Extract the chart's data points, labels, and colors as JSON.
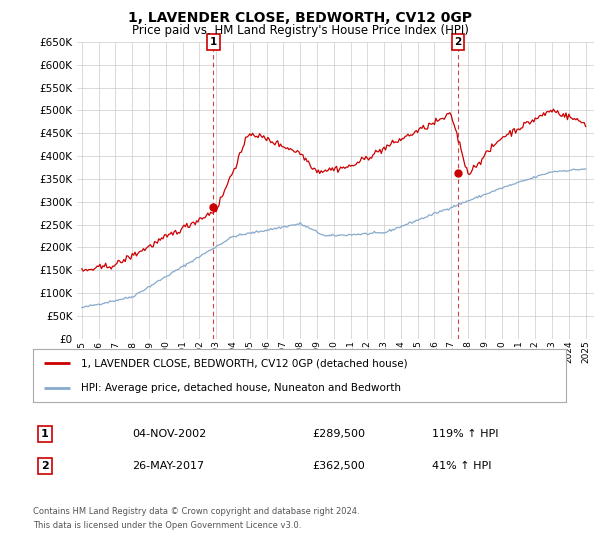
{
  "title": "1, LAVENDER CLOSE, BEDWORTH, CV12 0GP",
  "subtitle": "Price paid vs. HM Land Registry's House Price Index (HPI)",
  "title_fontsize": 10,
  "subtitle_fontsize": 8.5,
  "ylim": [
    0,
    650000
  ],
  "yticks": [
    0,
    50000,
    100000,
    150000,
    200000,
    250000,
    300000,
    350000,
    400000,
    450000,
    500000,
    550000,
    600000,
    650000
  ],
  "xlim_start": 1994.7,
  "xlim_end": 2025.5,
  "grid_color": "#cccccc",
  "red_line_color": "#cc0000",
  "blue_line_color": "#88aacc",
  "transaction1_x": 2002.84,
  "transaction1_y": 289500,
  "transaction2_x": 2017.4,
  "transaction2_y": 362500,
  "legend_line1": "1, LAVENDER CLOSE, BEDWORTH, CV12 0GP (detached house)",
  "legend_line2": "HPI: Average price, detached house, Nuneaton and Bedworth",
  "table_row1_num": "1",
  "table_row1_date": "04-NOV-2002",
  "table_row1_price": "£289,500",
  "table_row1_hpi": "119% ↑ HPI",
  "table_row2_num": "2",
  "table_row2_date": "26-MAY-2017",
  "table_row2_price": "£362,500",
  "table_row2_hpi": "41% ↑ HPI",
  "footer1": "Contains HM Land Registry data © Crown copyright and database right 2024.",
  "footer2": "This data is licensed under the Open Government Licence v3.0.",
  "background_color": "#ffffff"
}
